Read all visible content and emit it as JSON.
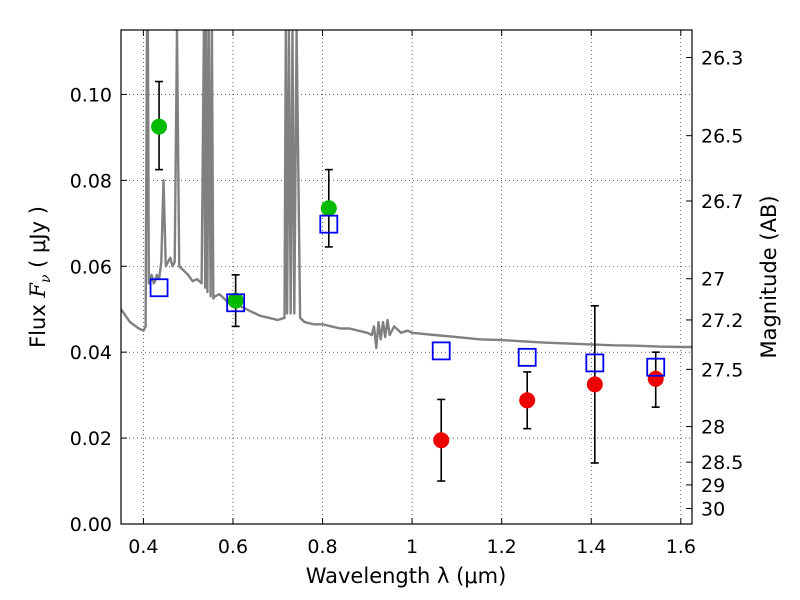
{
  "chart_data": {
    "type": "scatter",
    "xlabel": "Wavelength  λ (μm)",
    "ylabel_prefix": "Flux  ",
    "ylabel_symbol": "F",
    "ylabel_subscript": "ν",
    "ylabel_units": "  ( μJy )",
    "y2label": "Magnitude (AB)",
    "xlim": [
      0.35,
      1.625
    ],
    "ylim": [
      0.0,
      0.115
    ],
    "grid": true,
    "xticks": [
      0.4,
      0.6,
      0.8,
      1.0,
      1.2,
      1.4,
      1.6
    ],
    "xtick_labels": [
      "0.4",
      "0.6",
      "0.8",
      "1",
      "1.2",
      "1.4",
      "1.6"
    ],
    "yticks": [
      0.0,
      0.02,
      0.04,
      0.06,
      0.08,
      0.1
    ],
    "ytick_labels": [
      "0.00",
      "0.02",
      "0.04",
      "0.06",
      "0.08",
      "0.10"
    ],
    "magnitude_ticks": [
      {
        "label": "26.3",
        "flux": 0.1086
      },
      {
        "label": "26.5",
        "flux": 0.0904
      },
      {
        "label": "26.7",
        "flux": 0.0752
      },
      {
        "label": "27",
        "flux": 0.0571
      },
      {
        "label": "27.2",
        "flux": 0.0475
      },
      {
        "label": "27.5",
        "flux": 0.036
      },
      {
        "label": "28",
        "flux": 0.0227
      },
      {
        "label": "28.5",
        "flux": 0.0144
      },
      {
        "label": "29",
        "flux": 0.0091
      },
      {
        "label": "30",
        "flux": 0.0036
      }
    ],
    "series": [
      {
        "marker": "circle",
        "color": "#00bb00",
        "points": [
          {
            "x": 0.435,
            "y": 0.0925,
            "err_low": 0.0825,
            "err_high": 0.103
          },
          {
            "x": 0.606,
            "y": 0.052,
            "err_low": 0.046,
            "err_high": 0.058
          },
          {
            "x": 0.814,
            "y": 0.0735,
            "err_low": 0.0645,
            "err_high": 0.0825
          }
        ]
      },
      {
        "marker": "circle",
        "color": "#ee0000",
        "points": [
          {
            "x": 1.065,
            "y": 0.0195,
            "err_low": 0.01,
            "err_high": 0.029
          },
          {
            "x": 1.257,
            "y": 0.0288,
            "err_low": 0.0222,
            "err_high": 0.0354
          },
          {
            "x": 1.408,
            "y": 0.0325,
            "err_low": 0.0142,
            "err_high": 0.0508
          },
          {
            "x": 1.544,
            "y": 0.0338,
            "err_low": 0.0272,
            "err_high": 0.04
          }
        ]
      },
      {
        "marker": "open-square",
        "color": "#0000ee",
        "points": [
          {
            "x": 0.435,
            "y": 0.055
          },
          {
            "x": 0.606,
            "y": 0.0515
          },
          {
            "x": 0.814,
            "y": 0.0698
          },
          {
            "x": 1.065,
            "y": 0.0403
          },
          {
            "x": 1.257,
            "y": 0.0388
          },
          {
            "x": 1.408,
            "y": 0.0375
          },
          {
            "x": 1.544,
            "y": 0.0365
          }
        ]
      },
      {
        "marker": "line",
        "color": "#808080",
        "x": [
          0.35,
          0.37,
          0.39,
          0.4,
          0.405,
          0.408,
          0.41,
          0.412,
          0.415,
          0.418,
          0.42,
          0.423,
          0.426,
          0.43,
          0.435,
          0.44,
          0.445,
          0.45,
          0.455,
          0.46,
          0.465,
          0.47,
          0.475,
          0.48,
          0.49,
          0.5,
          0.51,
          0.52,
          0.53,
          0.535,
          0.538,
          0.54,
          0.543,
          0.546,
          0.55,
          0.553,
          0.556,
          0.56,
          0.57,
          0.58,
          0.59,
          0.6,
          0.61,
          0.62,
          0.63,
          0.64,
          0.65,
          0.66,
          0.68,
          0.7,
          0.715,
          0.718,
          0.721,
          0.725,
          0.729,
          0.733,
          0.737,
          0.742,
          0.75,
          0.76,
          0.78,
          0.8,
          0.82,
          0.84,
          0.86,
          0.88,
          0.9,
          0.91,
          0.915,
          0.92,
          0.925,
          0.93,
          0.935,
          0.94,
          0.945,
          0.95,
          0.96,
          0.975,
          0.99,
          1.0,
          1.05,
          1.1,
          1.15,
          1.2,
          1.25,
          1.3,
          1.35,
          1.4,
          1.45,
          1.5,
          1.55,
          1.6,
          1.625
        ],
        "y": [
          0.05,
          0.047,
          0.0455,
          0.045,
          0.046,
          0.115,
          0.115,
          0.056,
          0.056,
          0.058,
          0.0575,
          0.056,
          0.0565,
          0.058,
          0.057,
          0.061,
          0.08,
          0.06,
          0.061,
          0.062,
          0.06,
          0.061,
          0.115,
          0.06,
          0.059,
          0.058,
          0.0565,
          0.057,
          0.056,
          0.115,
          0.055,
          0.115,
          0.054,
          0.115,
          0.053,
          0.115,
          0.0525,
          0.053,
          0.0535,
          0.0525,
          0.0515,
          0.051,
          0.0515,
          0.0505,
          0.05,
          0.0495,
          0.049,
          0.0485,
          0.048,
          0.0475,
          0.048,
          0.115,
          0.049,
          0.115,
          0.049,
          0.115,
          0.049,
          0.115,
          0.048,
          0.047,
          0.0465,
          0.0465,
          0.046,
          0.0455,
          0.0455,
          0.045,
          0.0445,
          0.044,
          0.046,
          0.041,
          0.047,
          0.043,
          0.047,
          0.0435,
          0.0475,
          0.044,
          0.046,
          0.0445,
          0.045,
          0.0445,
          0.044,
          0.0435,
          0.043,
          0.0428,
          0.0425,
          0.0422,
          0.042,
          0.0418,
          0.0416,
          0.0415,
          0.0413,
          0.0412,
          0.0412
        ]
      }
    ]
  }
}
